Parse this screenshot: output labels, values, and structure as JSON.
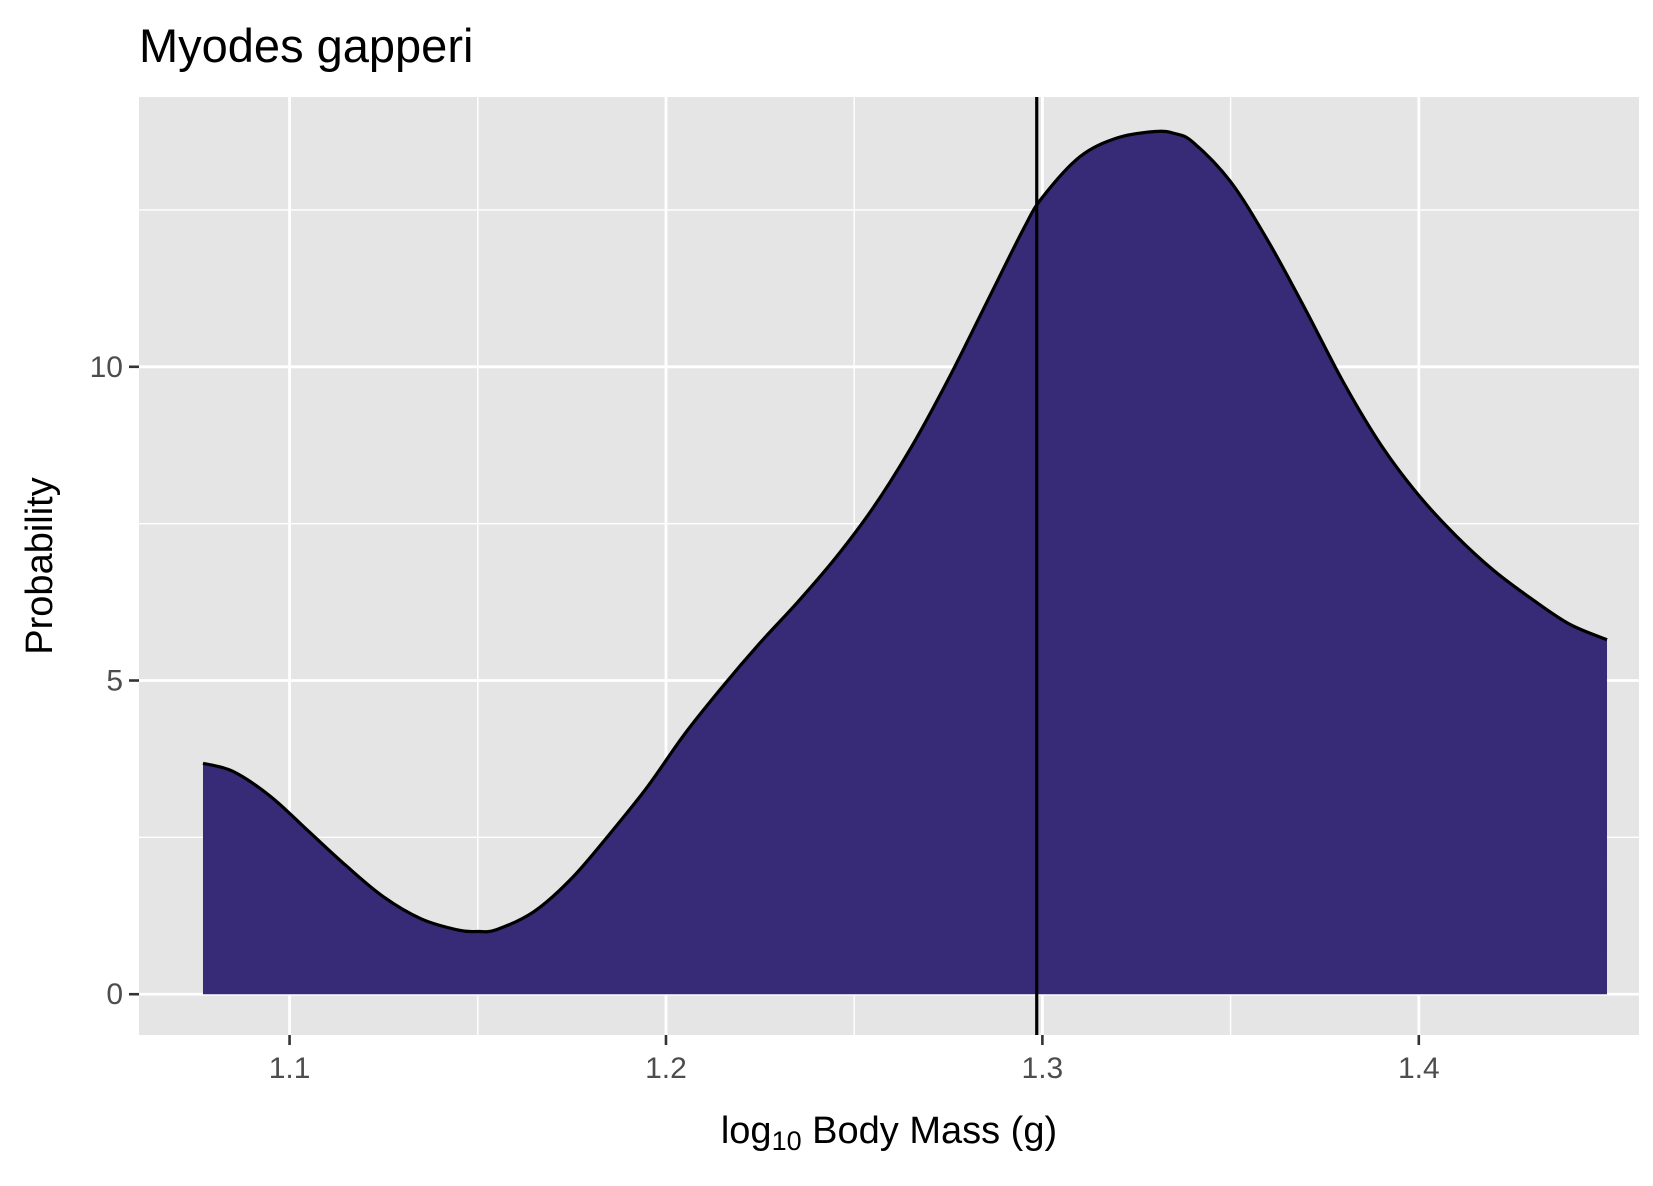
{
  "chart_data": {
    "type": "area",
    "title": "Myodes gapperi",
    "xlabel_main": "log",
    "xlabel_sub": "10",
    "xlabel_rest": " Body Mass (g)",
    "ylabel": "Probability",
    "xlim": [
      1.06,
      1.4585
    ],
    "ylim": [
      -0.65,
      14.3
    ],
    "x_ticks": [
      1.1,
      1.2,
      1.3,
      1.4
    ],
    "x_tick_labels": [
      "1.1",
      "1.2",
      "1.3",
      "1.4"
    ],
    "x_minor": [
      1.15,
      1.25,
      1.35
    ],
    "y_ticks": [
      0,
      5,
      10
    ],
    "y_tick_labels": [
      "0",
      "5",
      "10"
    ],
    "y_minor": [
      2.5,
      7.5,
      12.5
    ],
    "vline_x": 1.2985,
    "fill_color": "#372a77",
    "line_color": "#000000",
    "panel_color": "#e5e5e5",
    "grid_color": "#ffffff",
    "grid": true,
    "density": {
      "x": [
        1.077,
        1.085,
        1.095,
        1.105,
        1.115,
        1.125,
        1.135,
        1.145,
        1.15,
        1.155,
        1.165,
        1.175,
        1.185,
        1.195,
        1.205,
        1.215,
        1.225,
        1.235,
        1.245,
        1.255,
        1.265,
        1.275,
        1.285,
        1.295,
        1.3,
        1.31,
        1.32,
        1.33,
        1.335,
        1.34,
        1.35,
        1.36,
        1.37,
        1.38,
        1.39,
        1.4,
        1.41,
        1.42,
        1.43,
        1.44,
        1.45
      ],
      "y": [
        3.68,
        3.55,
        3.15,
        2.6,
        2.05,
        1.55,
        1.2,
        1.02,
        1.0,
        1.03,
        1.32,
        1.85,
        2.55,
        3.3,
        4.15,
        4.9,
        5.6,
        6.25,
        6.95,
        7.75,
        8.7,
        9.8,
        11.0,
        12.2,
        12.7,
        13.35,
        13.65,
        13.75,
        13.72,
        13.58,
        12.95,
        12.0,
        10.9,
        9.75,
        8.75,
        7.95,
        7.3,
        6.75,
        6.3,
        5.9,
        5.65
      ]
    }
  }
}
